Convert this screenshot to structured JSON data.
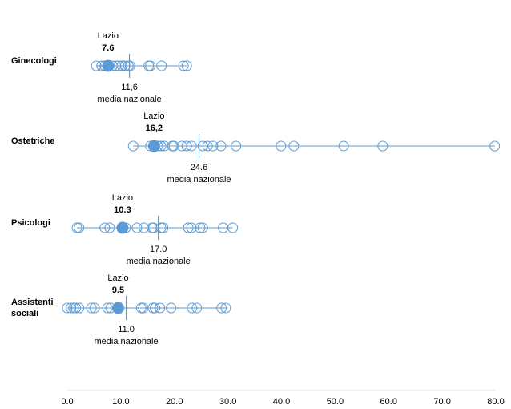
{
  "chart_data": {
    "type": "scatter",
    "xlim": [
      0,
      80
    ],
    "x_ticks": [
      "0.0",
      "10.0",
      "20.0",
      "30.0",
      "40.0",
      "50.0",
      "60.0",
      "70.0",
      "80.0"
    ],
    "grid": false,
    "highlight_color": "#5b9bd5",
    "rows": [
      {
        "category": "Ginecologi",
        "highlight_label": "Lazio",
        "highlight_value": 7.6,
        "highlight_text": "7.6",
        "mean": 11.6,
        "mean_text": "11,6",
        "mean_label": "media nazionale",
        "values": [
          5.4,
          6.4,
          7.0,
          8.4,
          9.1,
          9.6,
          10.2,
          10.8,
          11.4,
          11.7,
          15.2,
          15.5,
          17.6,
          21.7,
          22.3
        ]
      },
      {
        "category": "Ostetriche",
        "highlight_label": "Lazio",
        "highlight_value": 16.2,
        "highlight_text": "16,2",
        "mean": 24.6,
        "mean_text": "24.6",
        "mean_label": "media nazionale",
        "values": [
          12.3,
          15.5,
          16.1,
          16.9,
          17.5,
          18.1,
          19.6,
          19.9,
          21.4,
          22.3,
          23.2,
          25.3,
          26.2,
          27.2,
          28.7,
          31.5,
          39.9,
          42.3,
          51.6,
          58.9,
          79.8
        ]
      },
      {
        "category": "Psicologi",
        "highlight_label": "Lazio",
        "highlight_value": 10.3,
        "highlight_text": "10.3",
        "mean": 17.0,
        "mean_text": "17.0",
        "mean_label": "media nazionale",
        "values": [
          1.8,
          2.2,
          7.0,
          7.9,
          10.9,
          13.0,
          14.3,
          15.8,
          16.1,
          17.5,
          17.9,
          22.6,
          23.2,
          24.8,
          25.3,
          29.1,
          30.9
        ]
      },
      {
        "category": "Assistenti sociali",
        "highlight_label": "Lazio",
        "highlight_value": 9.5,
        "highlight_text": "9.5",
        "mean": 11.0,
        "mean_text": "11.0",
        "mean_label": "media nazionale",
        "values": [
          0.0,
          0.7,
          1.2,
          1.6,
          2.2,
          4.5,
          5.1,
          7.5,
          8.1,
          13.8,
          14.2,
          16.0,
          16.4,
          17.3,
          19.4,
          23.3,
          24.2,
          28.8,
          29.6
        ]
      }
    ]
  }
}
